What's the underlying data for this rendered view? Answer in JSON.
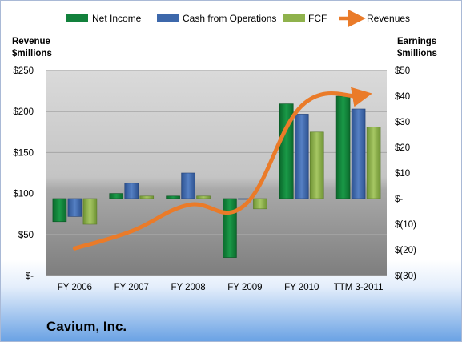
{
  "company_name": "Cavium, Inc.",
  "colors": {
    "net_income": "#12813c",
    "cash_from_operations": "#3d68ab",
    "fcf": "#8fb24c",
    "revenues": "#ea7b29",
    "plot_background_top": "#d8d8d8",
    "plot_background_bottom": "#7f7f7f",
    "grid": "#a0a0a0"
  },
  "chart_data": {
    "type": "bar",
    "categories": [
      "FY 2006",
      "FY 2007",
      "FY 2008",
      "FY 2009",
      "FY 2010",
      "TTM 3-2011"
    ],
    "series": [
      {
        "name": "Net Income",
        "type": "bar",
        "axis": "right",
        "values": [
          -9,
          2,
          1,
          -23,
          37,
          40
        ]
      },
      {
        "name": "Cash from Operations",
        "type": "bar",
        "axis": "right",
        "values": [
          -7,
          6,
          10,
          0,
          33,
          35
        ]
      },
      {
        "name": "FCF",
        "type": "bar",
        "axis": "right",
        "values": [
          -10,
          1,
          1,
          -4,
          26,
          28
        ]
      },
      {
        "name": "Revenues",
        "type": "line",
        "axis": "left",
        "values": [
          33,
          54,
          86,
          86,
          207,
          219
        ]
      }
    ],
    "left_axis": {
      "label_line1": "Revenue",
      "label_line2": "$millions",
      "ylim": [
        0,
        250
      ],
      "ticks": [
        {
          "value": 0,
          "label": "$-"
        },
        {
          "value": 50,
          "label": "$50"
        },
        {
          "value": 100,
          "label": "$100"
        },
        {
          "value": 150,
          "label": "$150"
        },
        {
          "value": 200,
          "label": "$200"
        },
        {
          "value": 250,
          "label": "$250"
        }
      ]
    },
    "right_axis": {
      "label_line1": "Earnings",
      "label_line2": "$millions",
      "ylim": [
        -30,
        50
      ],
      "ticks": [
        {
          "value": -30,
          "label": "$(30)"
        },
        {
          "value": -20,
          "label": "$(20)"
        },
        {
          "value": -10,
          "label": "$(10)"
        },
        {
          "value": 0,
          "label": "$-"
        },
        {
          "value": 10,
          "label": "$10"
        },
        {
          "value": 20,
          "label": "$20"
        },
        {
          "value": 30,
          "label": "$30"
        },
        {
          "value": 40,
          "label": "$40"
        },
        {
          "value": 50,
          "label": "$50"
        }
      ]
    },
    "legend": {
      "position": "top",
      "entries": [
        "Net Income",
        "Cash from Operations",
        "FCF",
        "Revenues"
      ]
    },
    "grid": true
  }
}
